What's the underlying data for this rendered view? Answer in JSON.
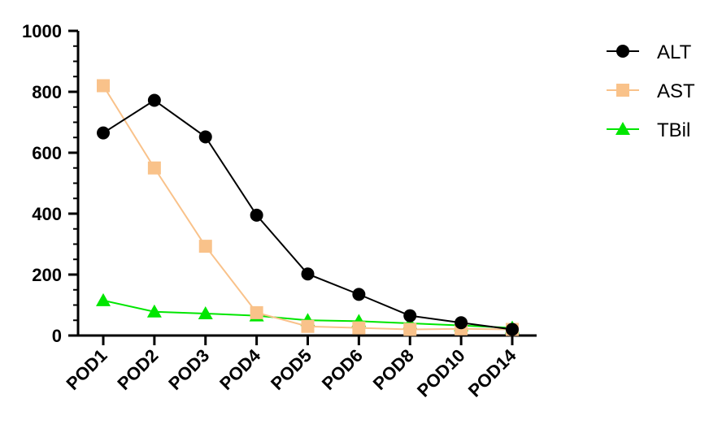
{
  "chart_data": {
    "type": "line",
    "categories": [
      "POD1",
      "POD2",
      "POD3",
      "POD4",
      "POD5",
      "POD6",
      "POD8",
      "POD10",
      "POD14"
    ],
    "ylim": [
      0,
      1000
    ],
    "yticks": [
      0,
      200,
      400,
      600,
      800,
      1000
    ],
    "y_minor_step": 50,
    "grid": false,
    "legend_position": "right",
    "series": [
      {
        "name": "ALT",
        "color": "#000000",
        "marker": "circle",
        "values": [
          665,
          772,
          652,
          395,
          202,
          135,
          65,
          42,
          20
        ]
      },
      {
        "name": "AST",
        "color": "#F9C28A",
        "marker": "square",
        "values": [
          820,
          550,
          293,
          75,
          30,
          25,
          20,
          22,
          20
        ]
      },
      {
        "name": "TBil",
        "color": "#00E600",
        "marker": "triangle",
        "values": [
          115,
          78,
          72,
          65,
          50,
          47,
          40,
          33,
          25
        ]
      }
    ]
  }
}
